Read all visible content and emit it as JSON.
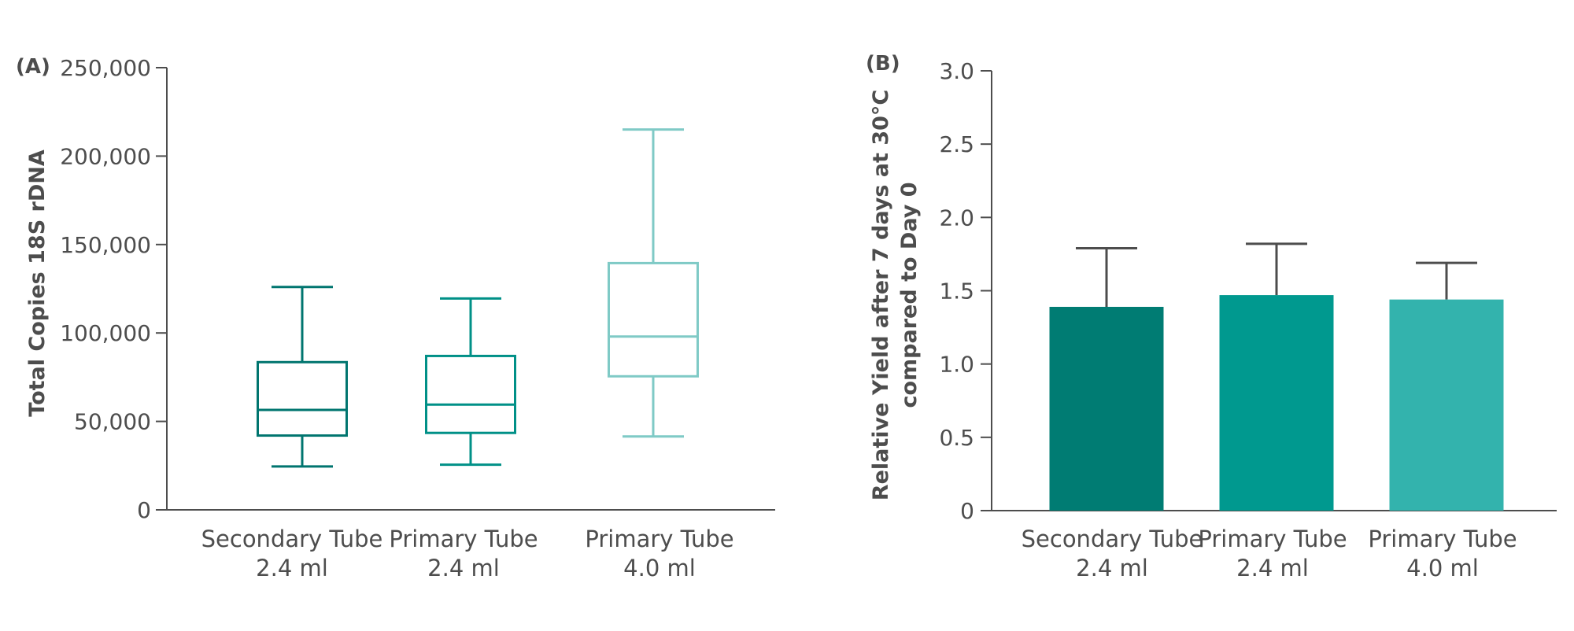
{
  "chart_data": [
    {
      "panel": "(A)",
      "type": "box",
      "ylabel": "Total Copies 18S rDNA",
      "ylim": [
        0,
        250000
      ],
      "yticks": [
        0,
        50000,
        100000,
        150000,
        200000,
        250000
      ],
      "ytick_labels": [
        "0",
        "50,000",
        "100,000",
        "150,000",
        "200,000",
        "250,000"
      ],
      "categories": [
        {
          "line1": "Secondary Tube",
          "line2": "2.4 ml"
        },
        {
          "line1": "Primary Tube",
          "line2": "2.4 ml"
        },
        {
          "line1": "Primary Tube",
          "line2": "4.0 ml"
        }
      ],
      "boxes": [
        {
          "min": 24500,
          "q1": 42000,
          "median": 56500,
          "q3": 83500,
          "max": 126000
        },
        {
          "min": 25500,
          "q1": 43500,
          "median": 59500,
          "q3": 87000,
          "max": 119500
        },
        {
          "min": 41500,
          "q1": 75500,
          "median": 98000,
          "q3": 139500,
          "max": 215000
        }
      ],
      "colors": [
        "#00756f",
        "#009087",
        "#7fcac6"
      ]
    },
    {
      "panel": "(B)",
      "type": "bar",
      "ylabel_line1": "Relative Yield after 7 days at 30°C",
      "ylabel_line2": "compared to Day 0",
      "ylim": [
        0,
        3.0
      ],
      "yticks": [
        0,
        0.5,
        1.0,
        1.5,
        2.0,
        2.5,
        3.0
      ],
      "ytick_labels": [
        "0",
        "0.5",
        "1.0",
        "1.5",
        "2.0",
        "2.5",
        "3.0"
      ],
      "categories": [
        {
          "line1": "Secondary Tube",
          "line2": "2.4 ml"
        },
        {
          "line1": "Primary Tube",
          "line2": "2.4 ml"
        },
        {
          "line1": "Primary Tube",
          "line2": "4.0 ml"
        }
      ],
      "values": [
        1.39,
        1.47,
        1.44
      ],
      "error_upper": [
        1.79,
        1.82,
        1.69
      ],
      "colors": [
        "#007c73",
        "#00998f",
        "#33b3ad"
      ]
    }
  ]
}
